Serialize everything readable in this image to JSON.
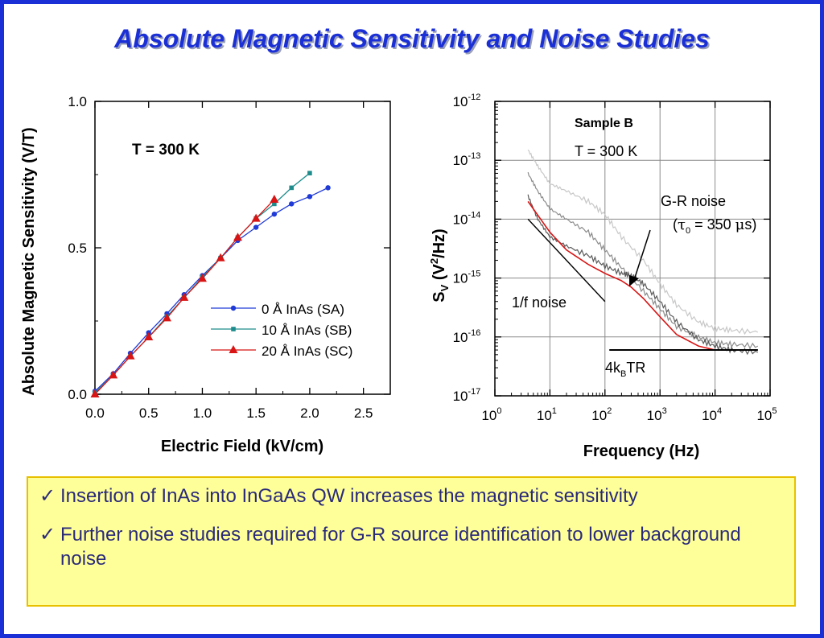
{
  "slide_title": "Absolute Magnetic Sensitivity and Noise Studies",
  "chart_data": [
    {
      "type": "line",
      "xlabel": "Electric Field (kV/cm)",
      "ylabel": "Absolute Magnetic Sensitivity (V/T)",
      "xlim": [
        0,
        2.75
      ],
      "ylim": [
        0,
        1.0
      ],
      "x_ticks": [
        "0.0",
        "0.5",
        "1.0",
        "1.5",
        "2.0",
        "2.5"
      ],
      "y_ticks": [
        "0.0",
        "0.5",
        "1.0"
      ],
      "annotation": "T = 300 K",
      "legend_position": "center-right",
      "grid": false,
      "series": [
        {
          "name": "0 Å InAs (SA)",
          "color": "#1f3ad6",
          "marker": "circle",
          "x": [
            0.0,
            0.17,
            0.33,
            0.5,
            0.67,
            0.83,
            1.0,
            1.17,
            1.33,
            1.5,
            1.67,
            1.83,
            2.0,
            2.17
          ],
          "y": [
            0.01,
            0.07,
            0.14,
            0.21,
            0.275,
            0.34,
            0.405,
            0.465,
            0.525,
            0.57,
            0.615,
            0.65,
            0.675,
            0.705
          ]
        },
        {
          "name": "10 Å InAs (SB)",
          "color": "#1e8c8c",
          "marker": "square",
          "x": [
            0.0,
            0.17,
            0.33,
            0.5,
            0.67,
            0.83,
            1.0,
            1.17,
            1.33,
            1.5,
            1.67,
            1.83,
            2.0
          ],
          "y": [
            0.005,
            0.065,
            0.13,
            0.195,
            0.265,
            0.33,
            0.4,
            0.465,
            0.535,
            0.6,
            0.65,
            0.705,
            0.755
          ]
        },
        {
          "name": "20 Å InAs (SC)",
          "color": "#d81414",
          "marker": "triangle",
          "x": [
            0.0,
            0.17,
            0.33,
            0.5,
            0.67,
            0.83,
            1.0,
            1.17,
            1.33,
            1.5,
            1.67
          ],
          "y": [
            0.0,
            0.065,
            0.13,
            0.195,
            0.26,
            0.33,
            0.395,
            0.465,
            0.535,
            0.6,
            0.665
          ]
        }
      ]
    },
    {
      "type": "line",
      "log_x": true,
      "log_y": true,
      "xlabel": "Frequency (Hz)",
      "ylabel_base": "S",
      "ylabel_sub": "V",
      "ylabel_rest": " (V",
      "ylabel_sup": "2",
      "ylabel_tail": "/Hz)",
      "xlim": [
        1,
        100000
      ],
      "ylim": [
        1e-17,
        1e-12
      ],
      "x_ticks": [
        {
          "base": "10",
          "exp": "0"
        },
        {
          "base": "10",
          "exp": "1"
        },
        {
          "base": "10",
          "exp": "2"
        },
        {
          "base": "10",
          "exp": "3"
        },
        {
          "base": "10",
          "exp": "4"
        },
        {
          "base": "10",
          "exp": "5"
        }
      ],
      "y_ticks": [
        {
          "base": "10",
          "exp": "-12"
        },
        {
          "base": "10",
          "exp": "-13"
        },
        {
          "base": "10",
          "exp": "-14"
        },
        {
          "base": "10",
          "exp": "-15"
        },
        {
          "base": "10",
          "exp": "-16"
        },
        {
          "base": "10",
          "exp": "-17"
        }
      ],
      "grid": true,
      "annotations": {
        "sample": "Sample B",
        "temperature": "T = 300 K",
        "gr_noise": "G-R noise",
        "tau_open": "(",
        "tau_symbol": "τ",
        "tau_sub": "0",
        "tau_eq": " = 350 ",
        "tau_unit_mu": "μ",
        "tau_unit_s": "s)",
        "one_over_f": "1/f noise",
        "thermal_a": "4k",
        "thermal_sub": "B",
        "thermal_b": "TR"
      },
      "series": [
        {
          "color": "#c8c8c8",
          "x": [
            4,
            6,
            10,
            20,
            50,
            100,
            200,
            500,
            1000,
            2000,
            5000,
            10000,
            20000,
            60000
          ],
          "y": [
            1.5e-13,
            8e-14,
            4e-14,
            3e-14,
            2e-14,
            1.2e-14,
            5e-15,
            2e-15,
            8e-16,
            3.5e-16,
            1.8e-16,
            1.4e-16,
            1.3e-16,
            1.2e-16
          ]
        },
        {
          "color": "#8c8c8c",
          "x": [
            4,
            6,
            10,
            20,
            50,
            100,
            200,
            500,
            1000,
            2000,
            5000,
            10000,
            20000,
            60000
          ],
          "y": [
            6e-14,
            3e-14,
            1.5e-14,
            1e-14,
            6e-15,
            3e-15,
            1.5e-15,
            6e-16,
            3e-16,
            1.5e-16,
            1e-16,
            8e-17,
            7.5e-17,
            7e-17
          ]
        },
        {
          "color": "#5a5a5a",
          "x": [
            4,
            6,
            10,
            20,
            50,
            100,
            200,
            300,
            500,
            1000,
            2000,
            5000,
            10000,
            20000,
            60000
          ],
          "y": [
            2.5e-14,
            1e-14,
            5e-15,
            3.5e-15,
            2.4e-15,
            1.6e-15,
            1.2e-15,
            1.1e-15,
            8e-16,
            4e-16,
            1.8e-16,
            9e-17,
            7e-17,
            6e-17,
            5.5e-17
          ]
        },
        {
          "color": "#d81414",
          "x": [
            4,
            10,
            20,
            50,
            100,
            200,
            300,
            500,
            1000,
            2000,
            5000,
            10000,
            20000,
            60000
          ],
          "y": [
            2e-14,
            6e-15,
            3e-15,
            1.7e-15,
            1.2e-15,
            9e-16,
            7e-16,
            4.5e-16,
            2.2e-16,
            1.1e-16,
            7e-17,
            6e-17,
            6e-17,
            6e-17
          ]
        }
      ],
      "reference_lines": [
        {
          "kind": "one_over_f",
          "x": [
            4,
            100
          ],
          "y": [
            1e-14,
            4e-16
          ]
        },
        {
          "kind": "thermal",
          "x": [
            120,
            60000
          ],
          "y": [
            6e-17,
            6e-17
          ]
        }
      ]
    }
  ],
  "bullets": [
    {
      "check": "✓",
      "text": "Insertion of InAs into InGaAs QW increases the magnetic sensitivity"
    },
    {
      "check": "✓",
      "text": "Further noise studies required for G-R source identification to lower background noise"
    }
  ]
}
